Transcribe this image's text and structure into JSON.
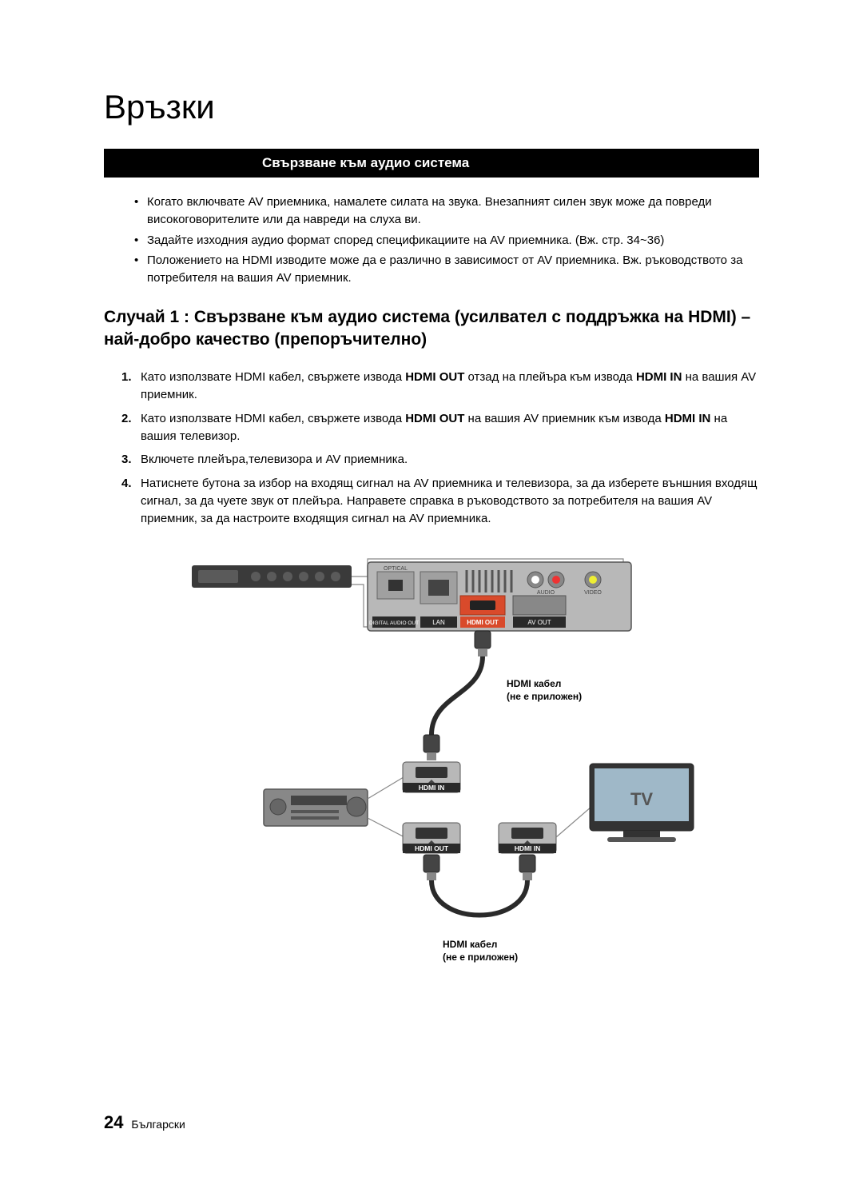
{
  "title": "Връзки",
  "sectionBar": "Свързване към аудио система",
  "bullets": [
    "Когато включвате AV приемника, намалете силата на звука. Внезапният силен звук може да повреди високоговорителите или да навреди на слуха ви.",
    "Задайте изходния аудио формат според спецификациите на AV приемника. (Вж. стр. 34~36)",
    "Положението на HDMI изводите може да е различно в зависимост от AV приемника. Вж. ръководството за потребителя на вашия AV приемник."
  ],
  "caseTitle": "Случай 1 : Свързване към аудио система (усилвател с поддръжка на HDMI) – най-добро качество (препоръчително)",
  "steps": [
    {
      "num": "1.",
      "html": "Като използвате HDMI кабел, свържете извода <b>HDMI OUT</b> отзад на плейъра към извода <b>HDMI IN</b> на вашия AV приемник."
    },
    {
      "num": "2.",
      "html": "Като използвате HDMI кабел, свържете извода <b>HDMI OUT</b> на вашия AV приемник към извода <b>HDMI IN</b> на вашия телевизор."
    },
    {
      "num": "3.",
      "html": "Включете плейъра,телевизора и AV приемника."
    },
    {
      "num": "4.",
      "html": "Натиснете бутона за избор на входящ сигнал на AV приемника и телевизора, за да изберете външния входящ сигнал, за да чуете звук от плейъра. Направете справка в ръководството за потребителя на вашия AV приемник, за да настроите входящия сигнал на AV приемника."
    }
  ],
  "diagram": {
    "playerPanel": {
      "labels": {
        "optical": "OPTICAL",
        "digitalAudioOut": "DIGITAL\nAUDIO OUT",
        "lan": "LAN",
        "hdmiOut": "HDMI OUT",
        "avOut": "AV OUT",
        "audio": "AUDIO",
        "video": "VIDEO"
      }
    },
    "hdmiCable1": {
      "label1": "HDMI кабел",
      "label2": "(не е приложен)"
    },
    "hdmiCable2": {
      "label1": "HDMI кабел",
      "label2": "(не е приложен)"
    },
    "receiverPorts": {
      "hdmiIn": "HDMI IN",
      "hdmiOut": "HDMI OUT"
    },
    "tvPort": {
      "hdmiIn": "HDMI IN"
    },
    "tvLabel": "TV",
    "colors": {
      "panelFill": "#b8b8b8",
      "panelStroke": "#555555",
      "labelBg": "#2a2a2a",
      "labelText": "#ffffff",
      "hdmiHighlight": "#d94a2b",
      "cable": "#2a2a2a",
      "device": "#888888",
      "tvScreen": "#9fb8c8"
    }
  },
  "footer": {
    "pageNum": "24",
    "lang": "Български"
  }
}
